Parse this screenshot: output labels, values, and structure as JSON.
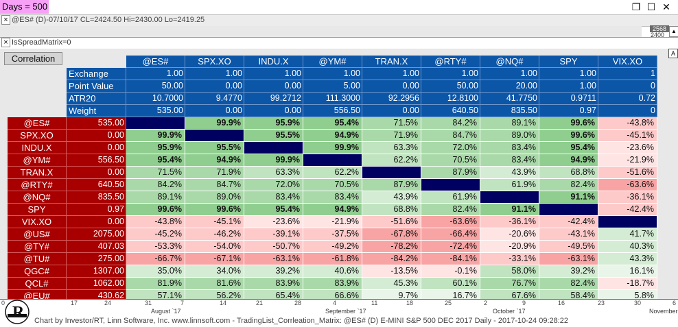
{
  "days_label": "Days = 500",
  "window_buttons": [
    "❐",
    "☐",
    "✕"
  ],
  "quote_line": "@ES# (D)-07/10/17 CL=2424.50 Hi=2430.00 Lo=2419.25",
  "price_tag": "2568",
  "price_below": "2400",
  "spread_line": "IsSpreadMatrix=0",
  "a_button": "A",
  "zero_label": "0",
  "correlation_button": "Correlation",
  "columns": [
    "@ES#",
    "SPX.XO",
    "INDU.X",
    "@YM#",
    "TRAN.X",
    "@RTY#",
    "@NQ#",
    "SPY",
    "VIX.XO"
  ],
  "info_rows": [
    {
      "label": "Exchange",
      "values": [
        "1.00",
        "1.00",
        "1.00",
        "1.00",
        "1.00",
        "1.00",
        "1.00",
        "1.00",
        "1"
      ]
    },
    {
      "label": "Point Value",
      "values": [
        "50.00",
        "0.00",
        "0.00",
        "5.00",
        "0.00",
        "50.00",
        "20.00",
        "1.00",
        "0"
      ]
    },
    {
      "label": "ATR20",
      "values": [
        "10.7000",
        "9.4770",
        "99.2712",
        "111.3000",
        "92.2956",
        "12.8100",
        "41.7750",
        "0.9711",
        "0.72"
      ]
    },
    {
      "label": "Weight",
      "values": [
        "535.00",
        "0.00",
        "0.00",
        "556.50",
        "0.00",
        "640.50",
        "835.50",
        "0.97",
        "0"
      ]
    }
  ],
  "rows": [
    {
      "label": "@ES#",
      "weight": "535.00",
      "cells": [
        "",
        "99.9%",
        "95.9%",
        "95.4%",
        "71.5%",
        "84.2%",
        "89.1%",
        "99.6%",
        "-43.8%"
      ]
    },
    {
      "label": "SPX.XO",
      "weight": "0.00",
      "cells": [
        "99.9%",
        "",
        "95.5%",
        "94.9%",
        "71.9%",
        "84.7%",
        "89.0%",
        "99.6%",
        "-45.1%"
      ]
    },
    {
      "label": "INDU.X",
      "weight": "0.00",
      "cells": [
        "95.9%",
        "95.5%",
        "",
        "99.9%",
        "63.3%",
        "72.0%",
        "83.4%",
        "95.4%",
        "-23.6%"
      ]
    },
    {
      "label": "@YM#",
      "weight": "556.50",
      "cells": [
        "95.4%",
        "94.9%",
        "99.9%",
        "",
        "62.2%",
        "70.5%",
        "83.4%",
        "94.9%",
        "-21.9%"
      ]
    },
    {
      "label": "TRAN.X",
      "weight": "0.00",
      "cells": [
        "71.5%",
        "71.9%",
        "63.3%",
        "62.2%",
        "",
        "87.9%",
        "43.9%",
        "68.8%",
        "-51.6%"
      ]
    },
    {
      "label": "@RTY#",
      "weight": "640.50",
      "cells": [
        "84.2%",
        "84.7%",
        "72.0%",
        "70.5%",
        "87.9%",
        "",
        "61.9%",
        "82.4%",
        "-63.6%"
      ]
    },
    {
      "label": "@NQ#",
      "weight": "835.50",
      "cells": [
        "89.1%",
        "89.0%",
        "83.4%",
        "83.4%",
        "43.9%",
        "61.9%",
        "",
        "91.1%",
        "-36.1%"
      ]
    },
    {
      "label": "SPY",
      "weight": "0.97",
      "cells": [
        "99.6%",
        "99.6%",
        "95.4%",
        "94.9%",
        "68.8%",
        "82.4%",
        "91.1%",
        "",
        "-42.4%"
      ]
    },
    {
      "label": "VIX.XO",
      "weight": "0.00",
      "cells": [
        "-43.8%",
        "-45.1%",
        "-23.6%",
        "-21.9%",
        "-51.6%",
        "-63.6%",
        "-36.1%",
        "-42.4%",
        ""
      ]
    },
    {
      "label": "@US#",
      "weight": "2075.00",
      "cells": [
        "-45.2%",
        "-46.2%",
        "-39.1%",
        "-37.5%",
        "-67.8%",
        "-66.4%",
        "-20.6%",
        "-43.1%",
        "41.7%"
      ]
    },
    {
      "label": "@TY#",
      "weight": "407.03",
      "cells": [
        "-53.3%",
        "-54.0%",
        "-50.7%",
        "-49.2%",
        "-78.2%",
        "-72.4%",
        "-20.9%",
        "-49.5%",
        "40.3%"
      ]
    },
    {
      "label": "@TU#",
      "weight": "275.00",
      "cells": [
        "-66.7%",
        "-67.1%",
        "-63.1%",
        "-61.8%",
        "-84.2%",
        "-84.1%",
        "-33.1%",
        "-63.1%",
        "43.3%"
      ]
    },
    {
      "label": "QGC#",
      "weight": "1307.00",
      "cells": [
        "35.0%",
        "34.0%",
        "39.2%",
        "40.6%",
        "-13.5%",
        "-0.1%",
        "58.0%",
        "39.2%",
        "16.1%"
      ]
    },
    {
      "label": "QCL#",
      "weight": "1062.00",
      "cells": [
        "81.9%",
        "81.6%",
        "83.9%",
        "83.9%",
        "45.3%",
        "60.1%",
        "76.7%",
        "82.4%",
        "-18.7%"
      ]
    },
    {
      "label": "@EU#",
      "weight": "430.62",
      "cells": [
        "57.1%",
        "56.2%",
        "65.4%",
        "66.6%",
        "9.7%",
        "16.7%",
        "67.6%",
        "58.4%",
        "5.8%"
      ]
    }
  ],
  "x_ticks": [
    "0",
    "17",
    "24",
    "31",
    "7",
    "14",
    "21",
    "28",
    "4",
    "11",
    "18",
    "25",
    "2",
    "9",
    "16",
    "23",
    "30",
    "6"
  ],
  "months": [
    "August `17",
    "September `17",
    "October `17",
    "November"
  ],
  "footer": "Chart by Investor/RT, Linn Software, Inc. www.linnsoft.com - TradingList_Corrleation_Matrix: @ES# (D) E-MINI S&P 500 DEC 2017 Daily - 2017-10-24 09:28:22",
  "colors": {
    "header_blue": "#0c56a8",
    "row_red": "#a80000",
    "diagonal": "#000060"
  }
}
